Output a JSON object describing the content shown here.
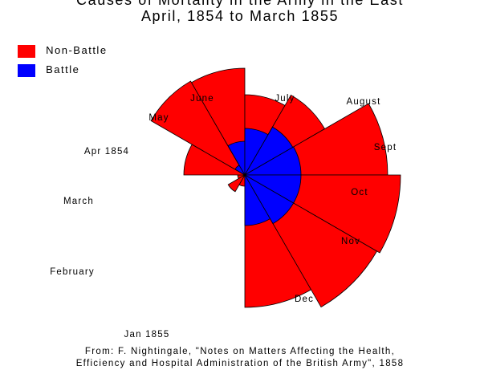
{
  "title": {
    "line1": "Causes of Mortality in the Army in the East",
    "line2": "April, 1854 to March 1855"
  },
  "legend": [
    {
      "label": "Non-Battle",
      "color": "#ff0000"
    },
    {
      "label": "Battle",
      "color": "#0000ff"
    }
  ],
  "source": {
    "line1": "From: F. Nightingale, \"Notes on Matters Affecting the Health,",
    "line2": "Efficiency and Hospital Administration of the British Army\", 1858"
  },
  "chart_data": {
    "type": "polar-area",
    "start_month": "Apr 1854",
    "direction": "clockwise",
    "series": [
      {
        "name": "Non-Battle",
        "color": "#ff0000"
      },
      {
        "name": "Battle",
        "color": "#0000ff"
      }
    ],
    "months": [
      {
        "label": "Apr 1854",
        "non_battle": 14,
        "battle": 0
      },
      {
        "label": "May",
        "non_battle": 24,
        "battle": 0
      },
      {
        "label": "June",
        "non_battle": 9,
        "battle": 0
      },
      {
        "label": "July",
        "non_battle": 76,
        "battle": 0
      },
      {
        "label": "August",
        "non_battle": 135,
        "battle": 14
      },
      {
        "label": "Sept",
        "non_battle": 133,
        "battle": 42
      },
      {
        "label": "Oct",
        "non_battle": 100,
        "battle": 58
      },
      {
        "label": "Nov",
        "non_battle": 115,
        "battle": 69
      },
      {
        "label": "Dec",
        "non_battle": 178,
        "battle": 70
      },
      {
        "label": "Jan 1855",
        "non_battle": 194,
        "battle": 70
      },
      {
        "label": "February",
        "non_battle": 190,
        "battle": 70
      },
      {
        "label": "March",
        "non_battle": 165,
        "battle": 63
      }
    ]
  }
}
